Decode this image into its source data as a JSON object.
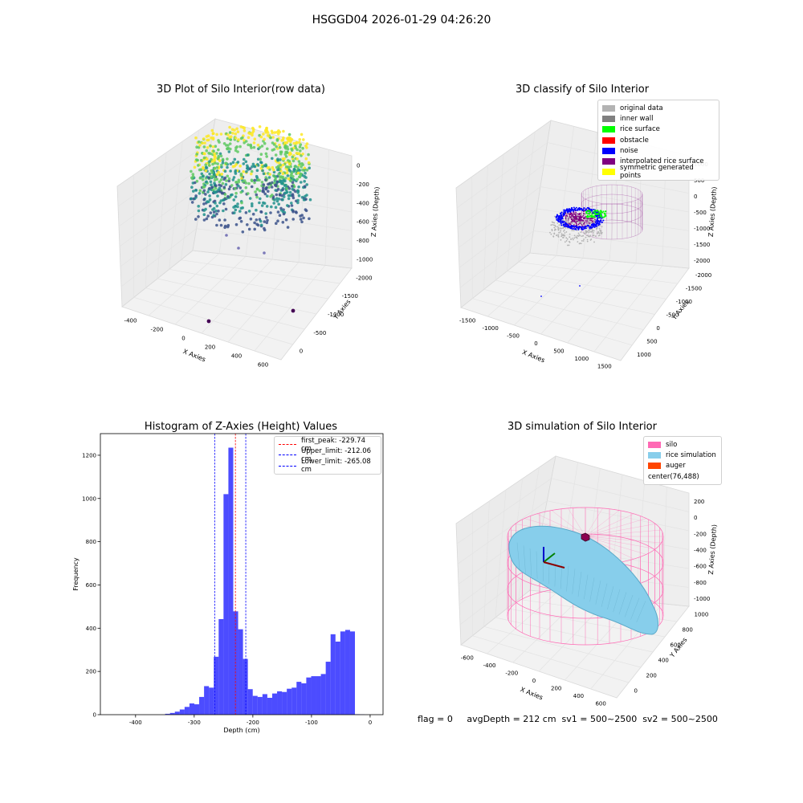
{
  "figure": {
    "suptitle": "HSGGD04 2026-01-29 04:26:20",
    "footer": "flag = 0     avgDepth = 212 cm  sv1 = 500~2500  sv2 = 500~2500"
  },
  "panels": {
    "raw": {
      "title": "3D Plot of Silo Interior(row data)",
      "xlabel": "X Axies",
      "ylabel": "Y Axies",
      "zlabel": "Z Axies (Depth)",
      "xticks": [
        "-400",
        "-200",
        "0",
        "200",
        "400",
        "600"
      ],
      "yticks": [
        "0",
        "-500",
        "-1000",
        "-1500",
        "-2000"
      ],
      "zticks": [
        "0",
        "-200",
        "-400",
        "-600",
        "-800",
        "-1000"
      ],
      "colormap": [
        "#440154",
        "#3b528b",
        "#21918c",
        "#5ec962",
        "#fde725"
      ]
    },
    "classify": {
      "title": "3D classify of Silo Interior",
      "xlabel": "X Axies",
      "ylabel": "Y Axies",
      "zlabel": "Z Axies (Depth)",
      "xticks": [
        "-1500",
        "-1000",
        "-500",
        "0",
        "500",
        "1000",
        "1500"
      ],
      "yticks": [
        "1000",
        "500",
        "0",
        "-500",
        "-1000",
        "-1500",
        "-2000"
      ],
      "zticks": [
        "1000",
        "500",
        "0",
        "-500",
        "-1000",
        "-1500",
        "-2000"
      ],
      "legend": [
        {
          "label": "original data",
          "color": "#b3b3b3"
        },
        {
          "label": "inner wall",
          "color": "#808080"
        },
        {
          "label": "rice surface",
          "color": "#00ff00"
        },
        {
          "label": "obstacle",
          "color": "#ff0000"
        },
        {
          "label": "noise",
          "color": "#0000ff"
        },
        {
          "label": "interpolated rice surface",
          "color": "#800080"
        },
        {
          "label": "symmetric generated points",
          "color": "#ffff00"
        }
      ]
    },
    "hist": {
      "title": "Histogram of Z-Axies (Height) Values",
      "legend": [
        {
          "label": "first_peak: -229.74 cm",
          "color": "#ff0000"
        },
        {
          "label": "Upper_limit: -212.06 cm",
          "color": "#0000ff"
        },
        {
          "label": "Lower_limit: -265.08 cm",
          "color": "#0000ff"
        }
      ]
    },
    "sim": {
      "title": "3D simulation of Silo Interior",
      "xlabel": "X Axies",
      "ylabel": "Y Axies",
      "zlabel": "Z Axies (Depth)",
      "xticks": [
        "-600",
        "-400",
        "-200",
        "0",
        "200",
        "400",
        "600"
      ],
      "yticks": [
        "0",
        "200",
        "400",
        "600",
        "800",
        "1000"
      ],
      "zticks": [
        "200",
        "0",
        "-200",
        "-400",
        "-600",
        "-800",
        "-1000"
      ],
      "legend": [
        {
          "label": "silo",
          "color": "#ff69b4"
        },
        {
          "label": "rice simulation",
          "color": "#87ceeb"
        },
        {
          "label": "auger",
          "color": "#ff4500"
        },
        {
          "label": "center(76,488)",
          "color": ""
        }
      ]
    }
  },
  "chart_data": [
    {
      "type": "bar",
      "title": "Histogram of Z-Axies (Height) Values",
      "xlabel": "Depth (cm)",
      "ylabel": "Frequency",
      "xlim": [
        -460,
        22
      ],
      "ylim": [
        0,
        1300
      ],
      "xticks": [
        -400,
        -300,
        -200,
        -100,
        0
      ],
      "yticks": [
        0,
        200,
        400,
        600,
        800,
        1000,
        1200
      ],
      "bar_color": "#0000ff",
      "bin_width": 8.3,
      "bin_starts": [
        -349.6,
        -341.3,
        -333.0,
        -324.7,
        -316.4,
        -308.1,
        -299.8,
        -291.5,
        -283.2,
        -274.9,
        -266.6,
        -258.3,
        -250.0,
        -241.7,
        -233.4,
        -225.1,
        -216.8,
        -208.5,
        -200.2,
        -191.9,
        -183.6,
        -175.3,
        -167.0,
        -158.7,
        -150.4,
        -142.1,
        -133.8,
        -125.5,
        -117.2,
        -108.9,
        -100.6,
        -92.3,
        -84.0,
        -75.7,
        -67.4,
        -59.1,
        -50.8,
        -42.5,
        -34.2,
        -25.9,
        -17.6,
        -9.3
      ],
      "values": [
        4,
        8,
        14,
        24,
        36,
        52,
        48,
        82,
        132,
        125,
        268,
        442,
        1020,
        1235,
        478,
        395,
        258,
        118,
        87,
        82,
        95,
        78,
        98,
        108,
        105,
        120,
        125,
        152,
        145,
        172,
        178,
        178,
        188,
        245,
        372,
        338,
        385,
        392,
        385,
        2,
        1,
        0
      ],
      "lines": [
        {
          "label": "first_peak: -229.74 cm",
          "x": -229.74,
          "color": "#ff0000",
          "style": "dashed"
        },
        {
          "label": "Upper_limit: -212.06 cm",
          "x": -212.06,
          "color": "#0000ff",
          "style": "dashed"
        },
        {
          "label": "Lower_limit: -265.08 cm",
          "x": -265.08,
          "color": "#0000ff",
          "style": "dashed"
        }
      ],
      "legend_position": "upper right"
    }
  ]
}
